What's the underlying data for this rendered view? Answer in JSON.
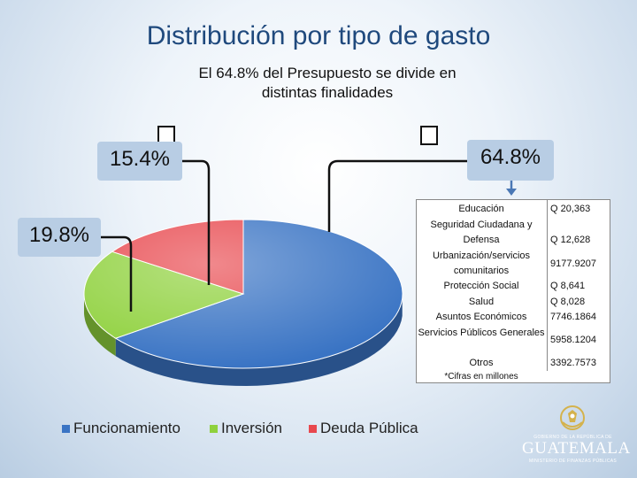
{
  "title": "Distribución por tipo de gasto",
  "subtitle_line1": "El 64.8% del Presupuesto se divide en",
  "subtitle_line2": "distintas finalidades",
  "callouts": {
    "left_top": "15.4%",
    "left_bottom": "19.8%",
    "right": "64.8%"
  },
  "chart_data": {
    "type": "pie",
    "title": "",
    "labels": [
      "Funcionamiento",
      "Inversión",
      "Deuda Pública"
    ],
    "values": [
      64.8,
      19.8,
      15.4
    ],
    "colors": [
      "#3a74c4",
      "#8fd13d",
      "#e8484e"
    ],
    "legend_position": "bottom",
    "style": "3d"
  },
  "table": {
    "rows": [
      {
        "label": "Educación",
        "value": "Q 20,363"
      },
      {
        "label": "Seguridad Ciudadana y Defensa",
        "value": "Q 12,628"
      },
      {
        "label": "Urbanización/servicios comunitarios",
        "value": "9177.9207"
      },
      {
        "label": "Protección Social",
        "value": "Q 8,641"
      },
      {
        "label": "Salud",
        "value": "Q 8,028"
      },
      {
        "label": "Asuntos Económicos",
        "value": "7746.1864"
      },
      {
        "label": "Servicios Públicos Generales",
        "value": "5958.1204"
      },
      {
        "label": "Otros",
        "value": "3392.7573"
      }
    ],
    "note": "*Cifras en millones"
  },
  "logo": {
    "top_text": "GOBIERNO DE LA REPÚBLICA DE",
    "main_text": "GUATEMALA",
    "bottom_text": "MINISTERIO DE FINANZAS PÚBLICAS"
  }
}
